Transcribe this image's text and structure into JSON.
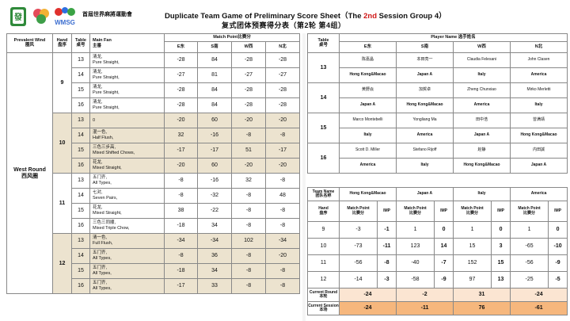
{
  "header": {
    "event_cn": "首屆世界麻將運動會",
    "title_en_pre": "Duplicate Team Game of Preliminary Score Sheet（The ",
    "title_en_session": "2nd",
    "title_en_post": " Session Group 4）",
    "title_cn": "复式团体预赛得分表（第2轮 第4组）",
    "logo_text": "WMSG"
  },
  "left": {
    "col_wind": "Prevalent Wind\n圈风",
    "col_hand": "Hand\n盘序",
    "col_table": "Table\n桌号",
    "col_fan": "Main Fan\n主番",
    "match_point_hdr": "Match Point比赛分",
    "seats": [
      "E东",
      "S南",
      "W西",
      "N北"
    ],
    "wind_label": "West Round\n西风圈",
    "hands": [
      {
        "hand": "9",
        "rows": [
          {
            "table": "13",
            "fan": "清龙,\nPure Straight,",
            "e": "-28",
            "s": "84",
            "w": "-28",
            "n": "-28"
          },
          {
            "table": "14",
            "fan": "清龙,\nPure Straight,",
            "e": "-27",
            "s": "81",
            "w": "-27",
            "n": "-27"
          },
          {
            "table": "15",
            "fan": "清龙,\nPure Straight,",
            "e": "-28",
            "s": "84",
            "w": "-28",
            "n": "-28"
          },
          {
            "table": "16",
            "fan": "清龙,\nPure Straight,",
            "e": "-28",
            "s": "84",
            "w": "-28",
            "n": "-28"
          }
        ]
      },
      {
        "hand": "10",
        "rows": [
          {
            "table": "13",
            "fan": "\u0000",
            "e": "-20",
            "s": "60",
            "w": "-20",
            "n": "-20"
          },
          {
            "table": "14",
            "fan": "混一色,\nHalf Flush,",
            "e": "32",
            "s": "-16",
            "w": "-8",
            "n": "-8"
          },
          {
            "table": "15",
            "fan": "三色三步高,\nMixed Shifted Chows,",
            "e": "-17",
            "s": "-17",
            "w": "51",
            "n": "-17"
          },
          {
            "table": "16",
            "fan": "花龙,\nMixed Straight,",
            "e": "-20",
            "s": "60",
            "w": "-20",
            "n": "-20"
          }
        ]
      },
      {
        "hand": "11",
        "rows": [
          {
            "table": "13",
            "fan": "五门齐,\nAll Types,",
            "e": "-8",
            "s": "-16",
            "w": "32",
            "n": "-8"
          },
          {
            "table": "14",
            "fan": "七对,\nSeven Pairs,",
            "e": "-8",
            "s": "-32",
            "w": "-8",
            "n": "48"
          },
          {
            "table": "15",
            "fan": "花龙,\nMixed Straight,",
            "e": "38",
            "s": "-22",
            "w": "-8",
            "n": "-8"
          },
          {
            "table": "16",
            "fan": "三色三同顺,\nMixed Triple Chow,",
            "e": "-18",
            "s": "34",
            "w": "-8",
            "n": "-8"
          }
        ]
      },
      {
        "hand": "12",
        "rows": [
          {
            "table": "13",
            "fan": "清一色,\nFull Flush,",
            "e": "-34",
            "s": "-34",
            "w": "102",
            "n": "-34"
          },
          {
            "table": "14",
            "fan": "五门齐,\nAll Types,",
            "e": "-8",
            "s": "36",
            "w": "-8",
            "n": "-20"
          },
          {
            "table": "15",
            "fan": "五门齐,\nAll Types,",
            "e": "-18",
            "s": "34",
            "w": "-8",
            "n": "-8"
          },
          {
            "table": "16",
            "fan": "五门齐,\nAll Types,",
            "e": "-17",
            "s": "33",
            "w": "-8",
            "n": "-8"
          }
        ]
      }
    ]
  },
  "right_top": {
    "col_table": "Table\n桌号",
    "player_hdr": "Player Name 选手姓名",
    "seats": [
      "E东",
      "S南",
      "W西",
      "N北"
    ],
    "tables": [
      {
        "table": "13",
        "names": [
          "陈嘉晶",
          "本田亮一",
          "Claudia Felesani",
          "John Clasen"
        ],
        "teams": [
          "Hong Kong&Macao",
          "Japan A",
          "Italy",
          "America"
        ]
      },
      {
        "table": "14",
        "names": [
          "黄野焱",
          "加賀卓",
          "Zheng Chunxiao",
          "Mirko Merletti"
        ],
        "teams": [
          "Japan A",
          "Hong Kong&Macao",
          "America",
          "Italy"
        ]
      },
      {
        "table": "15",
        "names": [
          "Marco Montebelli",
          "Yongliang Ma",
          "田中浩",
          "曾满靖"
        ],
        "teams": [
          "Italy",
          "America",
          "Japan A",
          "Hong Kong&Macao"
        ]
      },
      {
        "table": "16",
        "names": [
          "Scott D. Miller",
          "Stefano Rijoff",
          "赵静",
          "内田誠"
        ],
        "teams": [
          "America",
          "Italy",
          "Hong Kong&Macao",
          "Japan A"
        ]
      }
    ]
  },
  "right_bottom": {
    "team_label": "Team Name\n团队名称",
    "hand_label": "Hand\n盘序",
    "teams": [
      "Hong Kong&Macao",
      "Japan A",
      "Italy",
      "America"
    ],
    "mp_label": "Match Point\n比赛分",
    "imp_label": "IMP",
    "rows": [
      {
        "hand": "9",
        "vals": [
          "-3",
          "-1",
          "1",
          "0",
          "1",
          "0",
          "1",
          "0"
        ]
      },
      {
        "hand": "10",
        "vals": [
          "-73",
          "-11",
          "123",
          "14",
          "15",
          "3",
          "-65",
          "-10"
        ]
      },
      {
        "hand": "11",
        "vals": [
          "-56",
          "-8",
          "-40",
          "-7",
          "152",
          "15",
          "-56",
          "-9"
        ]
      },
      {
        "hand": "12",
        "vals": [
          "-14",
          "-3",
          "-58",
          "-9",
          "97",
          "13",
          "-25",
          "-5"
        ]
      }
    ],
    "current_round_label": "Current Round\n本轮",
    "current_round": [
      "-24",
      "-2",
      "31",
      "-24"
    ],
    "current_session_label": "Current Session\n本场",
    "current_session": [
      "-24",
      "-11",
      "76",
      "-61"
    ]
  }
}
